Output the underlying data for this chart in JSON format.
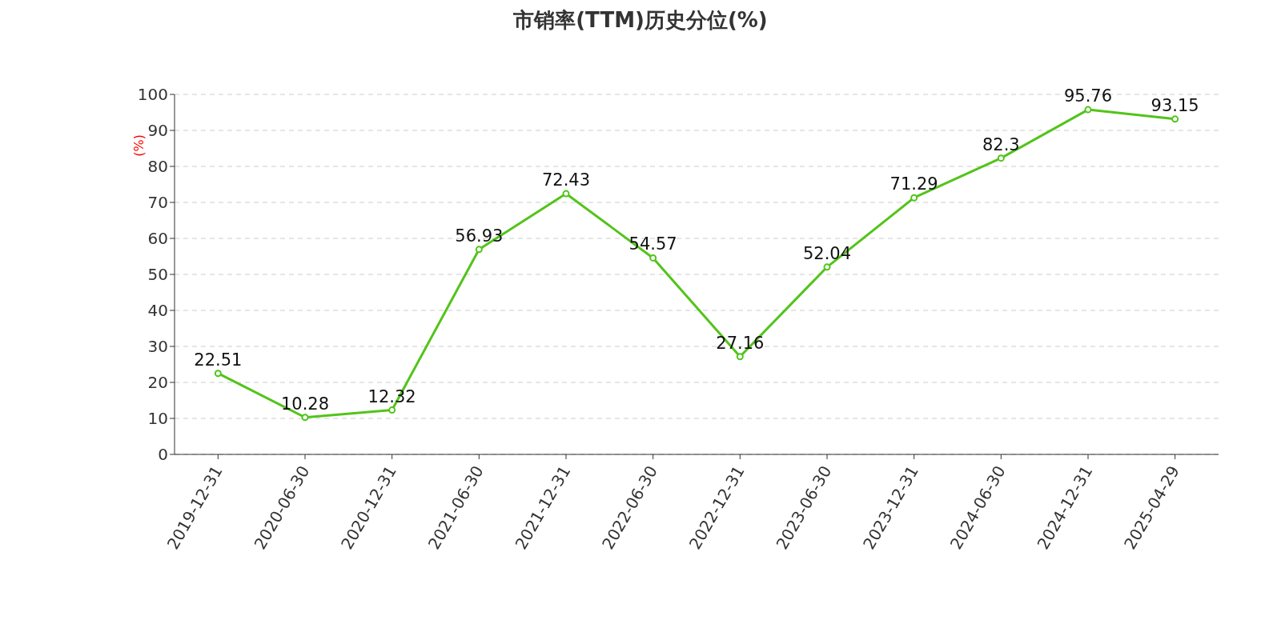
{
  "chart_data": {
    "type": "line",
    "title": "市销率(TTM)历史分位(%)",
    "ylabel": "(%)",
    "categories": [
      "2019-12-31",
      "2020-06-30",
      "2020-12-31",
      "2021-06-30",
      "2021-12-31",
      "2022-06-30",
      "2022-12-31",
      "2023-06-30",
      "2023-12-31",
      "2024-06-30",
      "2024-12-31",
      "2025-04-29"
    ],
    "series": [
      {
        "color": "#52c41a",
        "values": [
          22.51,
          10.28,
          12.32,
          56.93,
          72.43,
          54.57,
          27.16,
          52.04,
          71.29,
          82.3,
          95.76,
          93.15
        ]
      }
    ],
    "ylim": [
      0,
      100
    ],
    "yticks": [
      0,
      10,
      20,
      30,
      40,
      50,
      60,
      70,
      80,
      90,
      100
    ],
    "grid": "y",
    "marker": "circle",
    "line_style": "solid",
    "data_labels": true
  }
}
